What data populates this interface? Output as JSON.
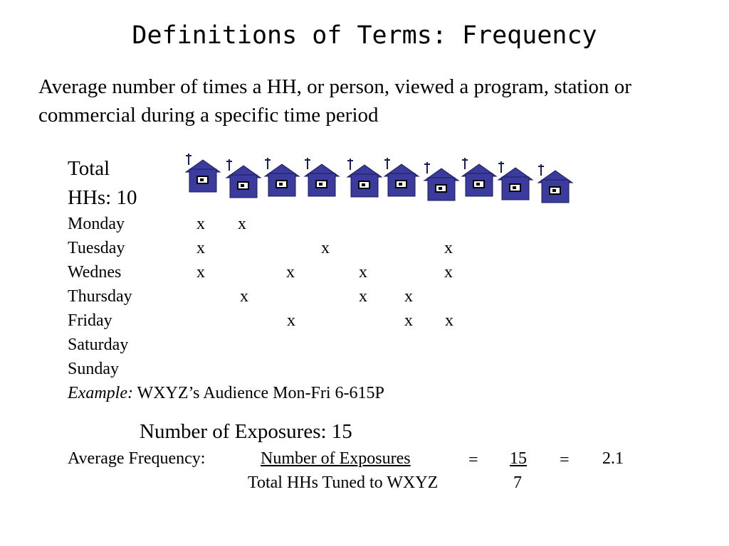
{
  "title": "Definitions of Terms: Frequency",
  "definition": "Average number of times a HH, or person, viewed a program, station or commercial during a specific time period",
  "total_hhs": {
    "line1": "Total",
    "line2": "HHs: 10"
  },
  "houses": {
    "count": 10,
    "colors": {
      "body": "#3b3b9e",
      "outline": "#1a1a5e",
      "screen": "#ffffff"
    }
  },
  "viewing": [
    {
      "day": "Monday",
      "marks": [
        "x",
        "x"
      ]
    },
    {
      "day": "Tuesday",
      "marks": [
        "x",
        "x",
        "x"
      ]
    },
    {
      "day": "Wednes",
      "marks": [
        "x",
        "x",
        "x",
        "x"
      ]
    },
    {
      "day": "Thursday",
      "marks": [
        "x",
        "x",
        "x"
      ]
    },
    {
      "day": "Friday",
      "marks": [
        "x",
        "x",
        "x"
      ]
    },
    {
      "day": "Saturday",
      "marks": []
    },
    {
      "day": "Sunday",
      "marks": []
    }
  ],
  "example": {
    "label": "Example:",
    "text": " WXYZ’s Audience Mon-Fri 6-615P"
  },
  "exposures": "Number of Exposures:  15",
  "formula": {
    "label": "Average Frequency:",
    "numerator_text": "Number of Exposures",
    "denominator_text": "Total HHs Tuned to WXYZ",
    "equals": "=",
    "numerator_value": "15",
    "denominator_value": "7",
    "result": "2.1"
  }
}
